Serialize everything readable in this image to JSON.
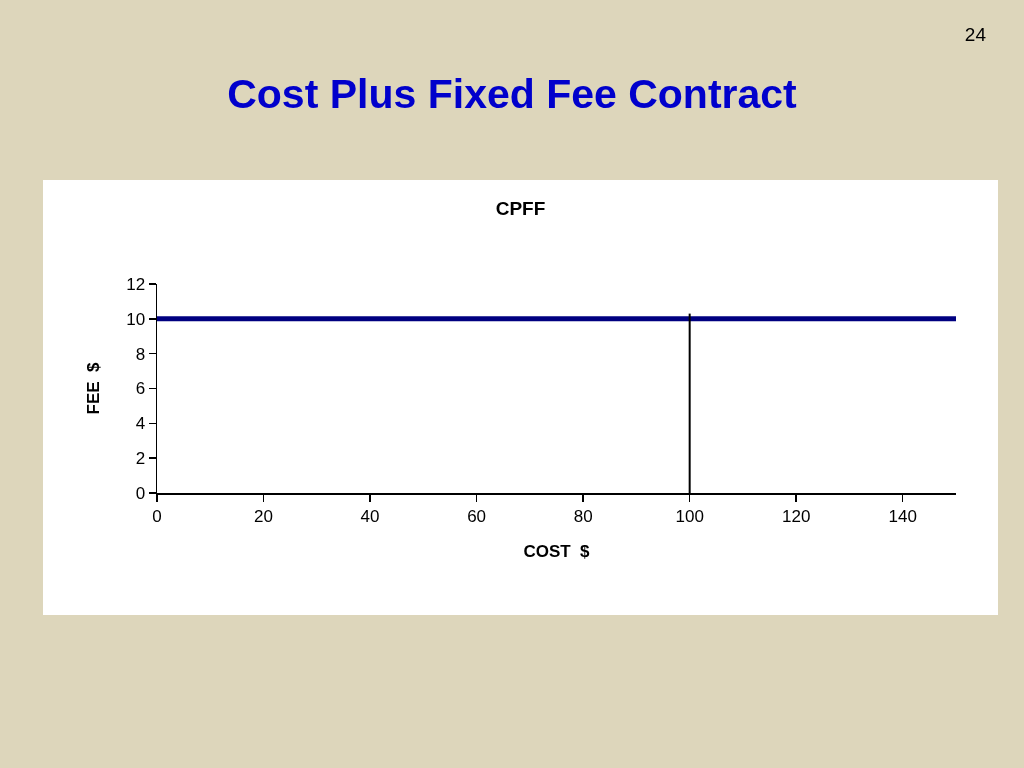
{
  "chart_data": {
    "type": "line",
    "title": "Cost Plus Fixed Fee Contract",
    "subtitle": "CPFF",
    "xlabel": "COST  $",
    "ylabel": "FEE  $",
    "annotations": [
      "24"
    ],
    "series": [
      {
        "color": "#000080",
        "x": [
          0,
          150
        ],
        "values": [
          10,
          10
        ]
      },
      {
        "type": "line",
        "color": "#000000",
        "x": [
          100,
          100
        ],
        "values": [
          0,
          10.3
        ]
      }
    ],
    "xlim": [
      0,
      150
    ],
    "xticks": [
      0,
      20,
      40,
      60,
      80,
      100,
      120,
      140
    ],
    "ylim": [
      0,
      12
    ],
    "yticks": [
      0,
      2,
      4,
      6,
      8,
      10,
      12
    ]
  }
}
